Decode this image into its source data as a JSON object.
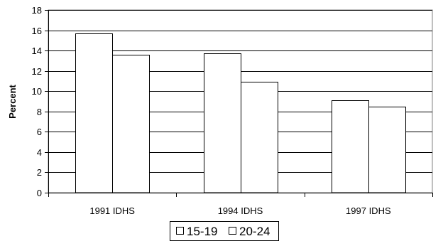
{
  "chart_data": {
    "type": "bar",
    "title": "",
    "xlabel": "",
    "ylabel": "Percent",
    "ylim": [
      0,
      18
    ],
    "yticks": [
      0,
      2,
      4,
      6,
      8,
      10,
      12,
      14,
      16,
      18
    ],
    "categories": [
      "1991 IDHS",
      "1994 IDHS",
      "1997 IDHS"
    ],
    "series": [
      {
        "name": "15-19",
        "values": [
          15.7,
          13.7,
          9.1
        ]
      },
      {
        "name": "20-24",
        "values": [
          13.6,
          10.9,
          8.5
        ]
      }
    ],
    "grid": true,
    "legend_position": "bottom",
    "colors": {
      "bar_fill": "#ffffff",
      "bar_stroke": "#000000",
      "grid": "#000000"
    }
  }
}
